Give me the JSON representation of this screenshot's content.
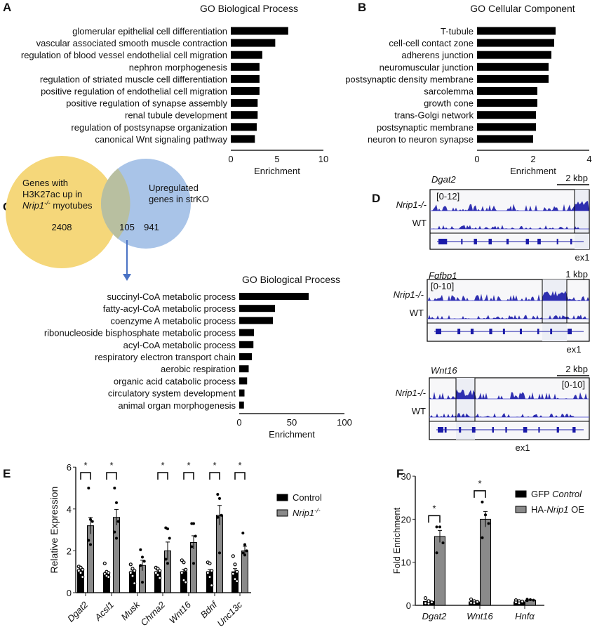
{
  "panels": {
    "a": "A",
    "b": "B",
    "c": "C",
    "d": "D",
    "e": "E",
    "f": "F"
  },
  "venn": {
    "left_label": [
      "Genes with",
      "H3K27ac up in",
      "Nrip1-/- myotubes"
    ],
    "right_label": [
      "Upregulated",
      "genes in strKO"
    ],
    "left_only": "2408",
    "overlap": "105",
    "right_only": "941",
    "colors": {
      "left": "#f5d77a",
      "right": "#a9c4e8",
      "overlap": "#b8bfa0",
      "arrow": "#4a72c4"
    }
  },
  "tracks": [
    {
      "gene": "Dgat2",
      "scale": "2 kbp",
      "range": "[0-12]",
      "rows": [
        "Nrip1-/-",
        "WT"
      ],
      "exon_label": "ex1"
    },
    {
      "gene": "Fgfbp1",
      "scale": "1 kbp",
      "range": "[0-10]",
      "rows": [
        "Nrip1-/-",
        "WT"
      ],
      "exon_label": "ex1"
    },
    {
      "gene": "Wnt16",
      "scale": "2 kbp",
      "range": "[0-10]",
      "rows": [
        "Nrip1-/-",
        "WT"
      ],
      "exon_label": "ex1"
    }
  ],
  "track_color": "#1a1aa8",
  "chart_data": [
    {
      "type": "bar",
      "orientation": "horizontal",
      "panel": "A",
      "title": "GO Biological Process",
      "categories": [
        "glomerular epithelial cell differentiation",
        "vascular associated smooth muscle contraction",
        "regulation of blood vessel endothelial cell migration",
        "nephron morphogenesis",
        "regulation of striated muscle cell differentiation",
        "positive regulation of endothelial cell migration",
        "positive regulation of synapse assembly",
        "renal tubule development",
        "regulation of postsynapse organization",
        "canonical Wnt signaling pathway"
      ],
      "values": [
        6.2,
        4.8,
        3.4,
        3.1,
        3.1,
        3.1,
        2.9,
        2.9,
        2.8,
        2.6
      ],
      "xlabel": "Enrichment",
      "xlim": [
        0,
        10
      ],
      "xticks": [
        0,
        5,
        10
      ]
    },
    {
      "type": "bar",
      "orientation": "horizontal",
      "panel": "B",
      "title": "GO Cellular Component",
      "categories": [
        "T-tubule",
        "cell-cell contact zone",
        "adherens junction",
        "neuromuscular junction",
        "postsynaptic density membrane",
        "sarcolemma",
        "growth cone",
        "trans-Golgi network",
        "postsynaptic membrane",
        "neuron to neuron synapse"
      ],
      "values": [
        2.8,
        2.75,
        2.65,
        2.55,
        2.55,
        2.15,
        2.15,
        2.1,
        2.1,
        2.0
      ],
      "xlabel": "Enrichment",
      "xlim": [
        0,
        4
      ],
      "xticks": [
        0,
        2,
        4
      ]
    },
    {
      "type": "bar",
      "orientation": "horizontal",
      "panel": "C",
      "title": "GO Biological Process",
      "categories": [
        "succinyl-CoA metabolic process",
        "fatty-acyl-CoA metabolic process",
        "coenzyme A metabolic process",
        "ribonucleoside bisphosphate metabolic process",
        "acyl-CoA metabolic process",
        "respiratory electron transport chain",
        "aerobic respiration",
        "organic acid catabolic process",
        "circulatory system development",
        "animal organ morphogenesis"
      ],
      "values": [
        66,
        34,
        32,
        14,
        13.5,
        12,
        9,
        7.5,
        5,
        4.5
      ],
      "xlabel": "Enrichment",
      "xlim": [
        0,
        100
      ],
      "xticks": [
        0,
        50,
        100
      ]
    },
    {
      "type": "bar",
      "orientation": "vertical",
      "panel": "E",
      "ylabel": "Relative Expression",
      "ylim": [
        0,
        6
      ],
      "yticks": [
        0,
        2,
        4,
        6
      ],
      "categories": [
        "Dgat2",
        "Acsl1",
        "Musk",
        "Chrna2",
        "Wnt16",
        "Bdnf",
        "Unc13c"
      ],
      "significance": [
        "*",
        "*",
        "",
        "*",
        "*",
        "*",
        "*"
      ],
      "series": [
        {
          "name": "Control",
          "italic": "",
          "color": "#000000",
          "values": [
            1.1,
            0.9,
            1.0,
            1.0,
            1.0,
            1.0,
            1.0
          ],
          "sem": [
            0.08,
            0.08,
            0.08,
            0.08,
            0.12,
            0.1,
            0.15
          ],
          "points": [
            [
              1.25,
              1.2,
              1.1,
              1.05,
              0.95,
              0.75
            ],
            [
              1.4,
              1.0,
              0.95,
              0.9,
              0.8,
              0.75
            ],
            [
              1.35,
              1.15,
              1.05,
              0.95,
              0.8,
              0.45
            ],
            [
              1.2,
              1.15,
              1.05,
              0.95,
              0.85,
              0.7
            ],
            [
              1.55,
              1.45,
              1.1,
              0.95,
              0.6,
              0.5
            ],
            [
              1.45,
              1.4,
              1.05,
              0.95,
              0.75,
              0.35
            ],
            [
              1.75,
              1.35,
              1.0,
              0.9,
              0.65,
              0.55
            ]
          ]
        },
        {
          "name": "Nrip1-/-",
          "italic": "Nrip1",
          "color": "#8a8a8a",
          "values": [
            3.2,
            3.6,
            1.3,
            2.0,
            2.4,
            3.7,
            2.0
          ],
          "sem": [
            0.4,
            0.38,
            0.25,
            0.42,
            0.32,
            0.47,
            0.22
          ],
          "points": [
            [
              5.0,
              3.5,
              3.4,
              2.5,
              2.3
            ],
            [
              5.0,
              4.3,
              3.4,
              2.9,
              2.6
            ],
            [
              2.05,
              1.7,
              1.5,
              1.3,
              0.5
            ],
            [
              3.1,
              3.05,
              2.6,
              1.6,
              1.4
            ],
            [
              3.3,
              3.3,
              2.7,
              2.2,
              1.4
            ],
            [
              4.7,
              4.5,
              3.7,
              3.6,
              1.9
            ],
            [
              2.85,
              2.3,
              2.0,
              1.9,
              1.8
            ]
          ]
        }
      ],
      "legend": "right"
    },
    {
      "type": "bar",
      "orientation": "vertical",
      "panel": "F",
      "ylabel": "Fold Enrichment",
      "ylim": [
        0,
        30
      ],
      "yticks": [
        0,
        10,
        20,
        30
      ],
      "categories": [
        "Dgat2",
        "Wnt16",
        "Hnfα"
      ],
      "significance": [
        "*",
        "*",
        ""
      ],
      "series": [
        {
          "name": "GFP Control",
          "italic": "Control",
          "color": "#000000",
          "values": [
            0.9,
            0.8,
            0.8
          ],
          "sem": [
            0.3,
            0.2,
            0.15
          ],
          "points": [
            [
              1.7,
              1.0,
              0.7,
              0.5,
              0.4
            ],
            [
              1.4,
              1.0,
              0.8,
              0.6,
              0.5
            ],
            [
              1.2,
              1.0,
              0.9,
              0.7,
              0.5
            ]
          ]
        },
        {
          "name": "HA-Nrip1 OE",
          "italic": "Nrip1",
          "color": "#8a8a8a",
          "values": [
            16,
            20,
            1.2
          ],
          "sem": [
            1.4,
            1.8,
            0.1
          ],
          "points": [
            [
              18.2,
              18.2,
              14.5,
              12.2
            ],
            [
              24,
              21,
              19,
              15.7
            ],
            [
              1.4,
              1.3,
              1.2,
              1.1
            ]
          ]
        }
      ],
      "legend": "right"
    }
  ]
}
